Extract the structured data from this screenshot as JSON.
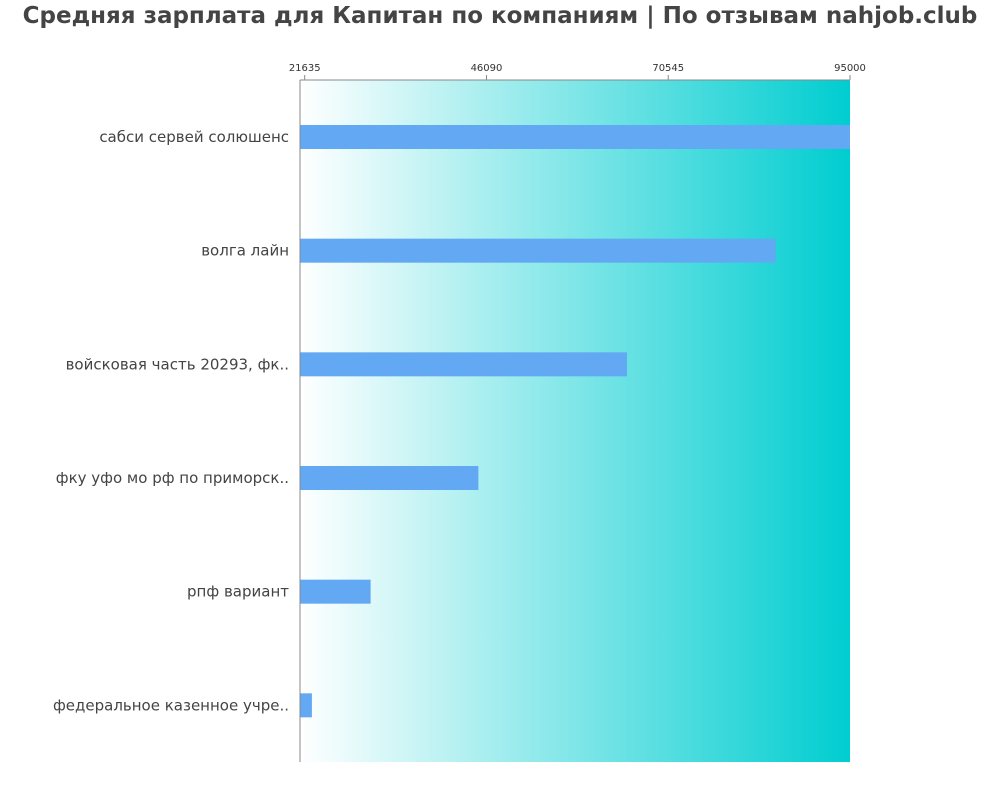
{
  "chart_data": {
    "type": "bar",
    "orientation": "horizontal",
    "title": "Средняя зарплата для Капитан по компаниям  | По отзывам nahjob.club",
    "categories": [
      "сабси сервей солюшенс",
      "волга лайн",
      "войсковая часть 20293, фк..",
      "фку уфо мо рф по приморск..",
      "рпф вариант",
      "федеральное казенное учре.."
    ],
    "values": [
      95000,
      85000,
      65000,
      45000,
      30500,
      22600
    ],
    "xlim": [
      21000,
      95000
    ],
    "xticks": [
      21635,
      46090,
      70545,
      95000
    ],
    "xtick_labels": [
      "21635",
      "46090",
      "70545",
      "95000"
    ],
    "xaxis_position": "top",
    "grid": false,
    "legend": "none",
    "colors": {
      "bar": "#63a8f3",
      "background_gradient_start": "#ffffff",
      "background_gradient_end": "#00cdd0",
      "axis": "#888888",
      "text": "#444444"
    }
  }
}
